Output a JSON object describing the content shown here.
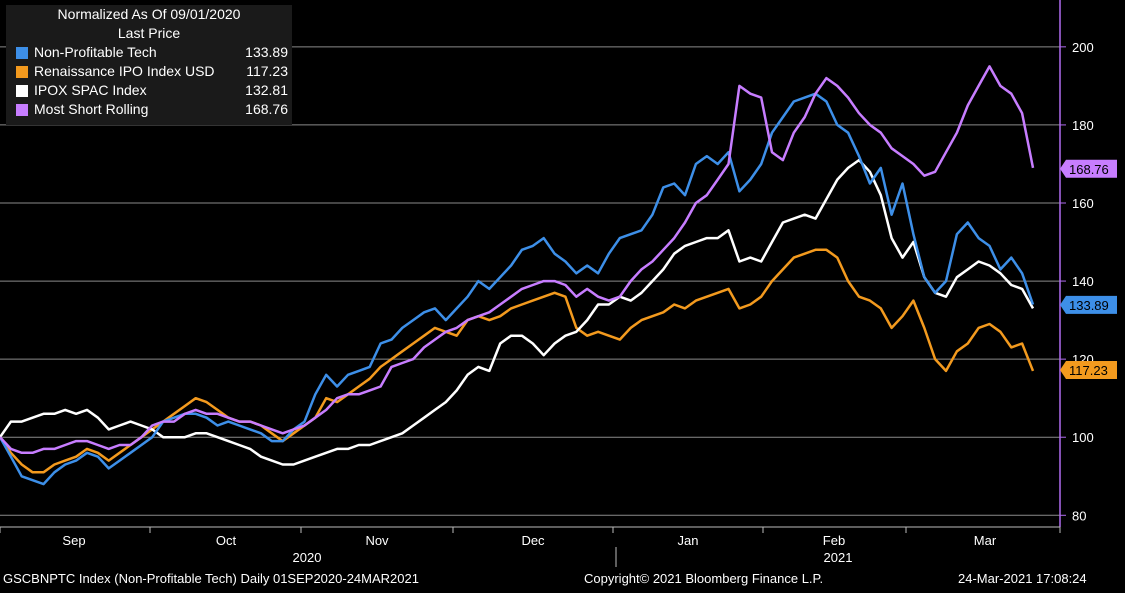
{
  "legend": {
    "header1": "Normalized As Of 09/01/2020",
    "header2": "Last Price",
    "items": [
      {
        "name": "Non-Profitable Tech",
        "value": "133.89",
        "color": "#3d8fe8"
      },
      {
        "name": "Renaissance IPO Index USD",
        "value": "117.23",
        "color": "#f39a1e"
      },
      {
        "name": "IPOX SPAC Index",
        "value": "132.81",
        "color": "#ffffff"
      },
      {
        "name": "Most Short Rolling",
        "value": "168.76",
        "color": "#c77dff"
      }
    ]
  },
  "footer": {
    "left": "GSCBNPTC Index (Non-Profitable Tech)  Daily 01SEP2020-24MAR2021",
    "center": "Copyright© 2021 Bloomberg Finance L.P.",
    "right": "24-Mar-2021 17:08:24"
  },
  "chart_data": {
    "type": "line",
    "x_labels": [
      "Sep",
      "Oct",
      "Nov",
      "Dec",
      "Jan",
      "Feb",
      "Mar"
    ],
    "years": [
      "2020",
      "2021"
    ],
    "y_ticks": [
      "80",
      "100",
      "120",
      "140",
      "160",
      "180",
      "200"
    ],
    "ylim": [
      77,
      212
    ],
    "grid": true,
    "axis_color": "#b06cf0",
    "value_tags": [
      {
        "series": "Most Short Rolling",
        "label": "168.76",
        "color": "#c77dff"
      },
      {
        "series": "Non-Profitable Tech",
        "label": "133.89",
        "color": "#3d8fe8"
      },
      {
        "series": "Renaissance IPO Index USD",
        "label": "117.23",
        "color": "#f39a1e"
      }
    ],
    "series": [
      {
        "name": "Non-Profitable Tech",
        "color": "#3d8fe8",
        "values": [
          100,
          95,
          90,
          89,
          88,
          91,
          93,
          94,
          96,
          95,
          92,
          94,
          96,
          98,
          100,
          104,
          105,
          106,
          106,
          105,
          103,
          104,
          103,
          102,
          101,
          99,
          99,
          102,
          104,
          111,
          116,
          113,
          116,
          117,
          118,
          124,
          125,
          128,
          130,
          132,
          133,
          130,
          133,
          136,
          140,
          138,
          141,
          144,
          148,
          149,
          151,
          147,
          145,
          142,
          144,
          142,
          147,
          151,
          152,
          153,
          157,
          164,
          165,
          162,
          170,
          172,
          170,
          173,
          163,
          166,
          170,
          178,
          182,
          186,
          187,
          188,
          186,
          180,
          178,
          172,
          165,
          169,
          157,
          165,
          152,
          141,
          137,
          140,
          152,
          155,
          151,
          149,
          143,
          146,
          142,
          134
        ]
      },
      {
        "name": "Renaissance IPO Index USD",
        "color": "#f39a1e",
        "values": [
          100,
          96,
          93,
          91,
          91,
          93,
          94,
          95,
          97,
          96,
          94,
          96,
          98,
          100,
          102,
          104,
          106,
          108,
          110,
          109,
          107,
          105,
          104,
          104,
          103,
          101,
          99,
          101,
          103,
          105,
          110,
          109,
          111,
          113,
          115,
          118,
          120,
          122,
          124,
          126,
          128,
          127,
          126,
          130,
          131,
          130,
          131,
          133,
          134,
          135,
          136,
          137,
          136,
          128,
          126,
          127,
          126,
          125,
          128,
          130,
          131,
          132,
          134,
          133,
          135,
          136,
          137,
          138,
          133,
          134,
          136,
          140,
          143,
          146,
          147,
          148,
          148,
          146,
          140,
          136,
          135,
          133,
          128,
          131,
          135,
          128,
          120,
          117,
          122,
          124,
          128,
          129,
          127,
          123,
          124,
          117
        ]
      },
      {
        "name": "IPOX SPAC Index",
        "color": "#ffffff",
        "values": [
          100,
          104,
          104,
          105,
          106,
          106,
          107,
          106,
          107,
          105,
          102,
          103,
          104,
          103,
          102,
          100,
          100,
          100,
          101,
          101,
          100,
          99,
          98,
          97,
          95,
          94,
          93,
          93,
          94,
          95,
          96,
          97,
          97,
          98,
          98,
          99,
          100,
          101,
          103,
          105,
          107,
          109,
          112,
          116,
          118,
          117,
          124,
          126,
          126,
          124,
          121,
          124,
          126,
          127,
          130,
          134,
          134,
          136,
          135,
          137,
          140,
          143,
          147,
          149,
          150,
          151,
          151,
          153,
          145,
          146,
          145,
          150,
          155,
          156,
          157,
          156,
          161,
          166,
          169,
          171,
          168,
          162,
          151,
          146,
          150,
          141,
          137,
          136,
          141,
          143,
          145,
          144,
          142,
          139,
          138,
          133
        ]
      },
      {
        "name": "Most Short Rolling",
        "color": "#c77dff",
        "values": [
          100,
          97,
          96,
          96,
          97,
          97,
          98,
          99,
          99,
          98,
          97,
          98,
          98,
          100,
          103,
          104,
          104,
          106,
          107,
          106,
          106,
          105,
          104,
          104,
          103,
          102,
          101,
          102,
          103,
          105,
          107,
          110,
          111,
          111,
          112,
          113,
          118,
          119,
          120,
          123,
          125,
          127,
          128,
          130,
          131,
          132,
          134,
          136,
          138,
          139,
          140,
          140,
          139,
          136,
          138,
          136,
          135,
          136,
          140,
          143,
          145,
          148,
          151,
          155,
          160,
          162,
          166,
          170,
          190,
          188,
          187,
          173,
          171,
          178,
          182,
          188,
          192,
          190,
          187,
          183,
          180,
          178,
          174,
          172,
          170,
          167,
          168,
          173,
          178,
          185,
          190,
          195,
          190,
          188,
          183,
          169
        ]
      }
    ]
  }
}
